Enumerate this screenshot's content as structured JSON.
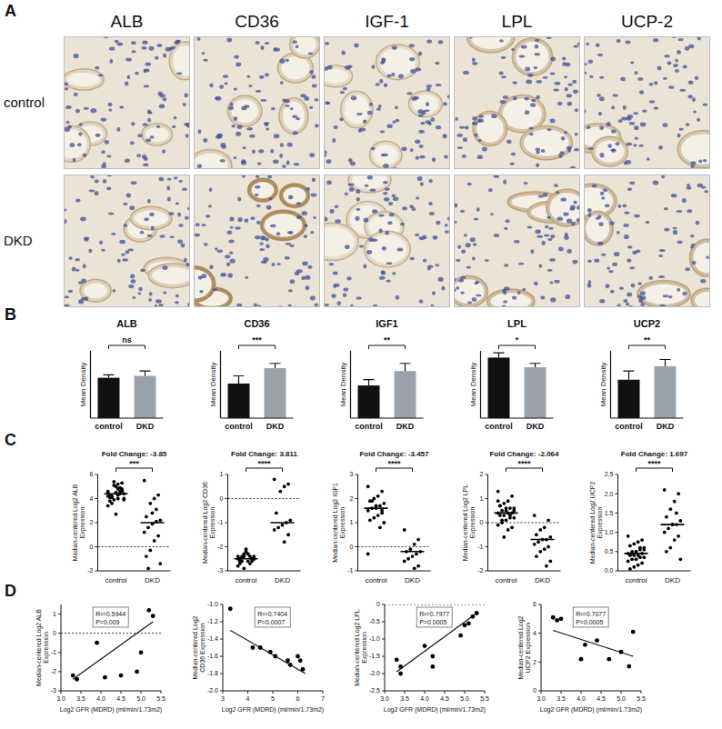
{
  "panel_labels": [
    "A",
    "B",
    "C",
    "D"
  ],
  "histology": {
    "columns": [
      "ALB",
      "CD36",
      "IGF-1",
      "LPL",
      "UCP-2"
    ],
    "rows": [
      "control",
      "DKD"
    ]
  },
  "chart_data": [
    {
      "type": "bar",
      "title": "ALB",
      "categories": [
        "control",
        "DKD"
      ],
      "values": [
        0.42,
        0.44
      ],
      "errors": [
        0.03,
        0.05
      ],
      "colors": [
        "#111111",
        "#9aa3ab"
      ],
      "ylim": [
        0,
        0.7
      ],
      "y_label": "Mean Density",
      "significance": "ns",
      "tick_labels": "x"
    },
    {
      "type": "bar",
      "title": "CD36",
      "categories": [
        "control",
        "DKD"
      ],
      "values": [
        0.36,
        0.52
      ],
      "errors": [
        0.08,
        0.05
      ],
      "colors": [
        "#111111",
        "#9aa3ab"
      ],
      "ylim": [
        0,
        0.7
      ],
      "y_label": "Mean Density",
      "significance": "***",
      "tick_labels": "x"
    },
    {
      "type": "bar",
      "title": "IGF1",
      "categories": [
        "control",
        "DKD"
      ],
      "values": [
        0.34,
        0.49
      ],
      "errors": [
        0.06,
        0.08
      ],
      "colors": [
        "#111111",
        "#9aa3ab"
      ],
      "ylim": [
        0,
        0.7
      ],
      "y_label": "Mean Density",
      "significance": "**",
      "tick_labels": "x"
    },
    {
      "type": "bar",
      "title": "LPL",
      "categories": [
        "control",
        "DKD"
      ],
      "values": [
        0.63,
        0.53
      ],
      "errors": [
        0.05,
        0.04
      ],
      "colors": [
        "#111111",
        "#9aa3ab"
      ],
      "ylim": [
        0,
        0.7
      ],
      "y_label": "Mean Density",
      "significance": "*",
      "tick_labels": "x"
    },
    {
      "type": "bar",
      "title": "UCP2",
      "categories": [
        "control",
        "DKD"
      ],
      "values": [
        0.4,
        0.54
      ],
      "errors": [
        0.09,
        0.07
      ],
      "colors": [
        "#111111",
        "#9aa3ab"
      ],
      "ylim": [
        0,
        0.7
      ],
      "y_label": "Mean Density",
      "significance": "**",
      "tick_labels": "x"
    },
    {
      "type": "strip",
      "title": "Fold Change: -3.85",
      "categories": [
        "control",
        "DKD"
      ],
      "values": [
        [
          4.5,
          4.8,
          5.2,
          3.9,
          4.1,
          4.4,
          4.6,
          5.0,
          3.6,
          4.2,
          4.7,
          4.3,
          5.4,
          3.8,
          4.0,
          4.9,
          4.5,
          4.1,
          3.4,
          4.6,
          4.8,
          5.1,
          4.3,
          3.9,
          4.4,
          2.7,
          4.2,
          4.6,
          5.3,
          4.0
        ],
        [
          5.5,
          4.3,
          4.0,
          3.6,
          2.5,
          2.2,
          2.1,
          1.9,
          1.6,
          1.2,
          0.9,
          0.5,
          -0.3,
          -0.8,
          -1.4,
          3.1,
          2.8,
          -1.8
        ]
      ],
      "medians": [
        4.4,
        2.0
      ],
      "ylim": [
        -2,
        6
      ],
      "yticks": [
        -2,
        0,
        2,
        4,
        6
      ],
      "hline": 0,
      "y_label": "Median-centered Log2 ALB Expression",
      "significance": "***",
      "color": "#000000"
    },
    {
      "type": "strip",
      "title": "Fold Change: 3.811",
      "categories": [
        "control",
        "DKD"
      ],
      "values": [
        [
          -2.4,
          -2.5,
          -2.6,
          -2.3,
          -2.7,
          -2.5,
          -2.4,
          -2.2,
          -2.6,
          -2.8,
          -2.5,
          -2.3,
          -2.4,
          -2.6,
          -2.5,
          -2.7,
          -2.1,
          -2.4,
          -2.5,
          -2.6,
          -2.3,
          -2.9,
          -2.5,
          -2.4
        ],
        [
          0.8,
          0.6,
          0.5,
          0.3,
          -0.6,
          -0.9,
          -1.0,
          -1.1,
          -1.2,
          -1.3,
          -1.5,
          -1.8
        ]
      ],
      "medians": [
        -2.5,
        -1.0
      ],
      "ylim": [
        -3,
        1
      ],
      "yticks": [
        -3,
        -2,
        -1,
        0,
        1
      ],
      "hline": 0,
      "y_label": "Median-centered Log2 CD36 Expression",
      "significance": "****",
      "color": "#000000"
    },
    {
      "type": "strip",
      "title": "Fold Change: -3.457",
      "categories": [
        "control",
        "DKD"
      ],
      "values": [
        [
          2.5,
          2.3,
          2.1,
          2.0,
          1.9,
          1.8,
          1.7,
          1.6,
          1.6,
          1.5,
          1.4,
          1.3,
          1.2,
          1.1,
          1.0,
          0.8,
          1.7,
          1.9,
          -0.3,
          1.5
        ],
        [
          0.7,
          0.3,
          0.1,
          -0.1,
          -0.2,
          -0.2,
          -0.3,
          -0.4,
          -0.5,
          -0.6,
          -0.8,
          -0.9
        ]
      ],
      "medians": [
        1.6,
        -0.2
      ],
      "ylim": [
        -1,
        3
      ],
      "yticks": [
        -1,
        0,
        1,
        2,
        3
      ],
      "hline": 0,
      "y_label": "Median-centered Log2 IGF1 Expression",
      "significance": "****",
      "color": "#000000"
    },
    {
      "type": "strip",
      "title": "Fold Change: -2.064",
      "categories": [
        "control",
        "DKD"
      ],
      "values": [
        [
          1.3,
          1.1,
          0.9,
          0.8,
          0.7,
          0.6,
          0.6,
          0.5,
          0.5,
          0.4,
          0.4,
          0.4,
          0.3,
          0.3,
          0.2,
          0.2,
          0.1,
          0.0,
          -0.1,
          -0.2,
          -0.3,
          -0.6,
          0.7,
          0.5,
          0.3,
          0.6,
          0.1,
          0.9
        ],
        [
          0.3,
          0.1,
          -0.2,
          -0.3,
          -0.5,
          -0.6,
          -0.7,
          -0.7,
          -0.8,
          -0.9,
          -1.0,
          -1.1,
          -1.2,
          -1.4,
          -1.6,
          -1.8
        ]
      ],
      "medians": [
        0.4,
        -0.7
      ],
      "ylim": [
        -2,
        2
      ],
      "yticks": [
        -2,
        -1,
        0,
        1,
        2
      ],
      "hline": 0,
      "y_label": "Median-centered Log2 LPL Expression",
      "significance": "****",
      "color": "#000000"
    },
    {
      "type": "strip",
      "title": "Fold Change: 1.697",
      "categories": [
        "control",
        "DKD"
      ],
      "values": [
        [
          0.9,
          0.8,
          0.75,
          0.7,
          0.65,
          0.6,
          0.55,
          0.5,
          0.5,
          0.45,
          0.45,
          0.4,
          0.4,
          0.4,
          0.35,
          0.35,
          0.3,
          0.3,
          0.25,
          0.2,
          0.15,
          0.1,
          0.05,
          0.55,
          0.6,
          0.5,
          0.45
        ],
        [
          2.1,
          2.0,
          1.8,
          1.6,
          1.4,
          1.3,
          1.2,
          1.2,
          1.1,
          1.0,
          0.9,
          0.8,
          0.6,
          0.5,
          0.3,
          1.5,
          1.2
        ]
      ],
      "medians": [
        0.45,
        1.2
      ],
      "ylim": [
        0,
        2.5
      ],
      "yticks": [
        {
          "value": 0,
          "label": "0.0"
        },
        0.5,
        {
          "value": 1,
          "label": "1.0"
        },
        1.5,
        {
          "value": 2,
          "label": "2.0"
        },
        2.5
      ],
      "y_label": "Median-centered Log2 UCP2 Expression",
      "significance": "****",
      "color": "#000000"
    },
    {
      "type": "scatter",
      "x": [
        3.3,
        3.4,
        3.9,
        4.1,
        4.5,
        4.9,
        5.0,
        5.2,
        5.3
      ],
      "y": [
        -2.2,
        -2.4,
        -0.5,
        -2.3,
        -2.2,
        -2.0,
        -1.0,
        1.2,
        0.9
      ],
      "fit_line": {
        "x": [
          3.3,
          5.3
        ],
        "y": [
          -2.4,
          0.6
        ]
      },
      "xlim": [
        3,
        5.5
      ],
      "xticks": [
        {
          "value": 3,
          "label": "3.0"
        },
        3.5,
        {
          "value": 4,
          "label": "4.0"
        },
        4.5,
        {
          "value": 5,
          "label": "5.0"
        },
        5.5
      ],
      "ylim": [
        -3,
        1.5
      ],
      "yticks": [
        -3,
        -2,
        -1,
        0,
        1
      ],
      "hline": 0,
      "x_label": "Log2 GFR (MDRD) (ml/min/1.73m2)",
      "y_label": "Median-centered Log2 ALB Expression",
      "annotation": [
        "R²=0.5944",
        "P=0.009"
      ],
      "color": "#000000"
    },
    {
      "type": "scatter",
      "x": [
        3.3,
        4.2,
        4.5,
        4.9,
        5.1,
        5.6,
        5.7,
        6.0,
        6.1,
        6.2
      ],
      "y": [
        -1.05,
        -1.5,
        -1.5,
        -1.55,
        -1.6,
        -1.65,
        -1.7,
        -1.6,
        -1.65,
        -1.75
      ],
      "fit_line": {
        "x": [
          3.3,
          6.3
        ],
        "y": [
          -1.3,
          -1.8
        ]
      },
      "xlim": [
        3,
        7
      ],
      "xticks": [
        3,
        4,
        5,
        6,
        7
      ],
      "ylim": [
        -2,
        -1
      ],
      "yticks": [
        {
          "value": -2,
          "label": "-2.0"
        },
        -1.8,
        -1.6,
        -1.4,
        -1.2,
        {
          "value": -1,
          "label": "-1.0"
        }
      ],
      "x_label": "Log2 GFR (MDRD) (ml/min/1.73m2)",
      "y_label": "Median-centered Log2 CD36 Expression",
      "annotation": [
        "R²=0.7404",
        "P=0.0007"
      ],
      "color": "#000000"
    },
    {
      "type": "scatter",
      "x": [
        3.3,
        3.4,
        3.4,
        4.0,
        4.2,
        4.2,
        4.9,
        5.0,
        5.1,
        5.2,
        5.3
      ],
      "y": [
        -1.6,
        -1.8,
        -2.0,
        -1.2,
        -1.5,
        -1.8,
        -0.9,
        -0.6,
        -0.55,
        -0.35,
        -0.25
      ],
      "fit_line": {
        "x": [
          3.3,
          5.3
        ],
        "y": [
          -1.95,
          -0.25
        ]
      },
      "xlim": [
        3,
        5.5
      ],
      "xticks": [
        {
          "value": 3,
          "label": "3.0"
        },
        3.5,
        {
          "value": 4,
          "label": "4.0"
        },
        4.5,
        {
          "value": 5,
          "label": "5.0"
        },
        5.5
      ],
      "ylim": [
        -2.5,
        0
      ],
      "yticks": [
        -2.5,
        {
          "value": -2,
          "label": "-2.0"
        },
        -1.5,
        {
          "value": -1,
          "label": "-1.0"
        },
        -0.5,
        0
      ],
      "hline": 0,
      "x_label": "Log2 GFR (MDRD) (ml/min/1.73m2)",
      "y_label": "Median-centered Log2 LPL Expression",
      "annotation": [
        "R²=0.7977",
        "P=0.0005"
      ],
      "color": "#000000"
    },
    {
      "type": "scatter",
      "x": [
        3.3,
        3.4,
        3.5,
        4.0,
        4.1,
        4.4,
        4.7,
        5.0,
        5.2,
        5.3
      ],
      "y": [
        5.1,
        4.9,
        5.0,
        2.2,
        3.2,
        3.5,
        2.2,
        2.7,
        1.7,
        4.1
      ],
      "fit_line": {
        "x": [
          3.3,
          5.3
        ],
        "y": [
          4.2,
          2.4
        ]
      },
      "xlim": [
        3,
        5.5
      ],
      "xticks": [
        {
          "value": 3,
          "label": "3.0"
        },
        3.5,
        {
          "value": 4,
          "label": "4.0"
        },
        4.5,
        {
          "value": 5,
          "label": "5.0"
        },
        5.5
      ],
      "ylim": [
        0,
        6
      ],
      "yticks": [
        0,
        2,
        4,
        6
      ],
      "x_label": "Log2 GFR (MDRD) (ml/min/1.73m2)",
      "y_label": "Median-centered Log2 UCP2 Expression",
      "annotation": [
        "R²=0.7077",
        "P=0.0005"
      ],
      "color": "#000000"
    }
  ]
}
